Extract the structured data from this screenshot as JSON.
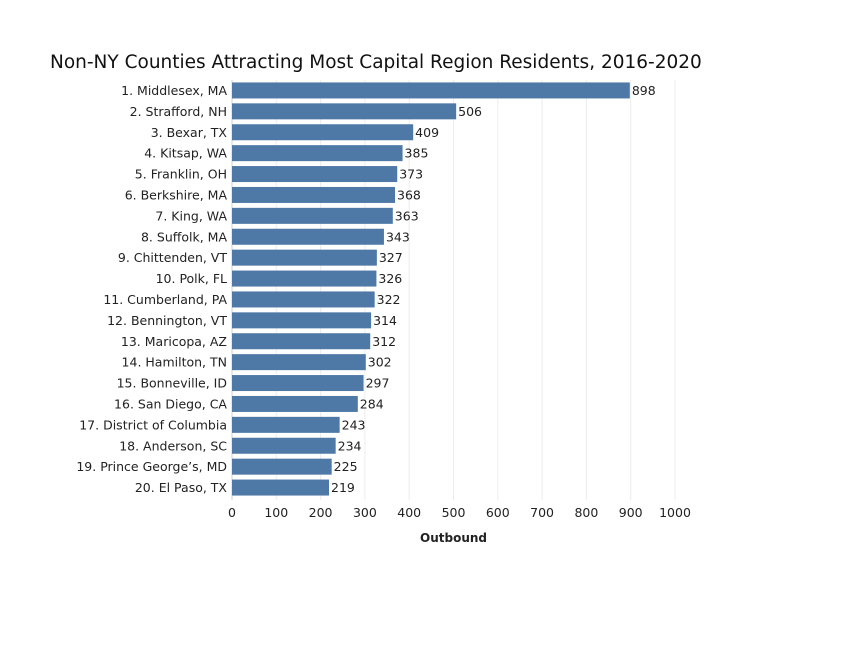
{
  "chart_data": {
    "type": "bar",
    "orientation": "horizontal",
    "title": "Non-NY Counties Attracting Most Capital Region Residents, 2016-2020",
    "xlabel": "Outbound",
    "ylabel": "",
    "xlim": [
      0,
      1000
    ],
    "xticks": [
      0,
      100,
      200,
      300,
      400,
      500,
      600,
      700,
      800,
      900,
      1000
    ],
    "grid": true,
    "bar_color": "#4e79a7",
    "categories": [
      "1. Middlesex, MA",
      "2. Strafford, NH",
      "3. Bexar, TX",
      "4. Kitsap, WA",
      "5. Franklin, OH",
      "6. Berkshire, MA",
      "7. King, WA",
      "8. Suffolk, MA",
      "9. Chittenden, VT",
      "10. Polk, FL",
      "11. Cumberland, PA",
      "12. Bennington, VT",
      "13. Maricopa, AZ",
      "14. Hamilton, TN",
      "15. Bonneville, ID",
      "16. San Diego, CA",
      "17. District of Columbia",
      "18. Anderson, SC",
      "19. Prince George’s, MD",
      "20. El Paso, TX"
    ],
    "values": [
      898,
      506,
      409,
      385,
      373,
      368,
      363,
      343,
      327,
      326,
      322,
      314,
      312,
      302,
      297,
      284,
      243,
      234,
      225,
      219
    ]
  }
}
